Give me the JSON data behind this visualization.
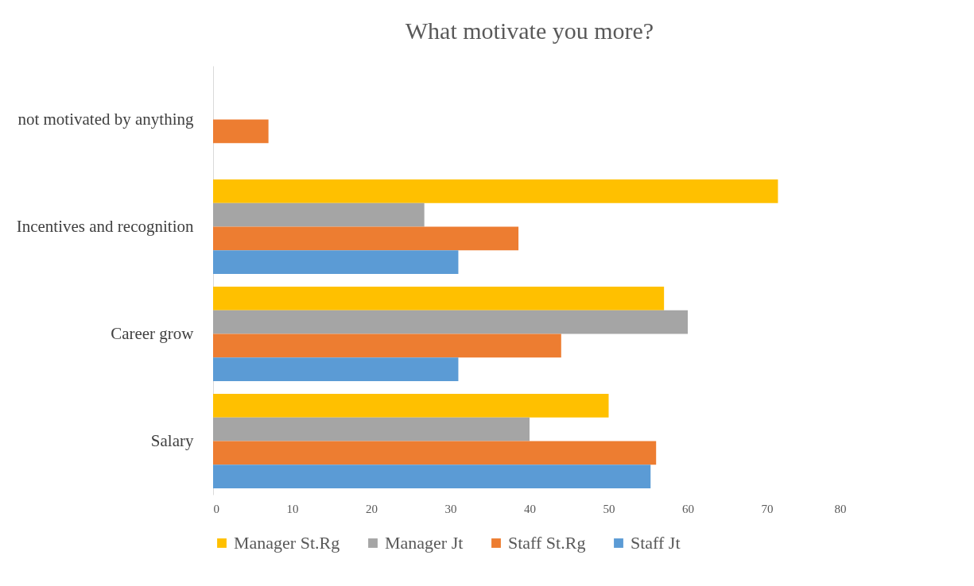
{
  "chart_data": {
    "type": "bar",
    "orientation": "horizontal",
    "title": "What motivate  you more?",
    "categories": [
      "not motivated by anything",
      "Incentives and recognition",
      "Career grow",
      "Salary"
    ],
    "series": [
      {
        "name": "Manager St.Rg",
        "color": "#ffc000",
        "values": [
          null,
          71.4,
          57,
          50
        ]
      },
      {
        "name": "Manager Jt",
        "color": "#a5a5a5",
        "values": [
          null,
          26.7,
          60,
          40
        ]
      },
      {
        "name": "Staff St.Rg",
        "color": "#ed7d31",
        "values": [
          7,
          38.6,
          44,
          56
        ]
      },
      {
        "name": "Staff Jt",
        "color": "#5b9bd5",
        "values": [
          null,
          31,
          31,
          55.3
        ]
      }
    ],
    "xlim": [
      0,
      80
    ],
    "xticks": [
      0,
      10,
      20,
      30,
      40,
      50,
      60,
      70,
      80
    ],
    "grid": false,
    "legend": "bottom"
  }
}
